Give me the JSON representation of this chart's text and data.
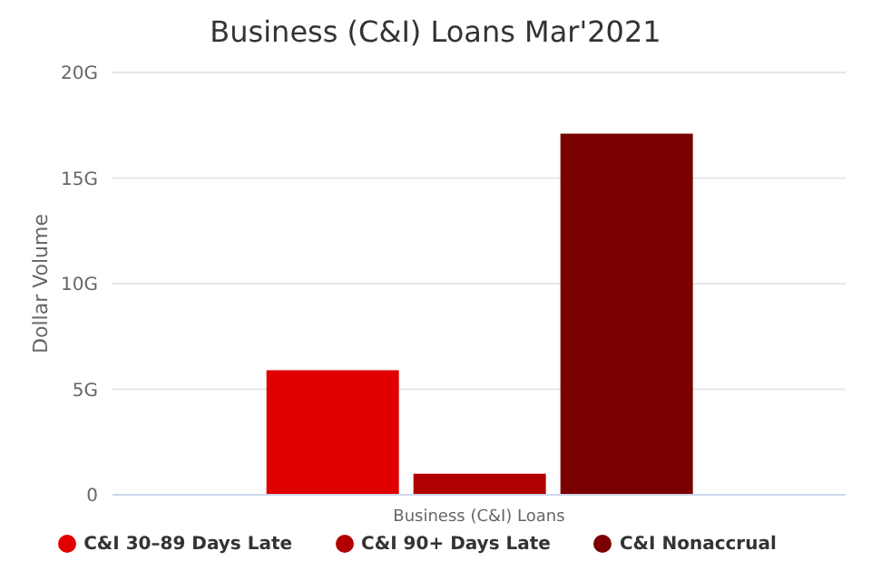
{
  "chart_data": {
    "type": "bar",
    "title": "Business (C&I) Loans Mar'2021",
    "ylabel": "Dollar Volume",
    "categories": [
      "Business (C&I) Loans"
    ],
    "series": [
      {
        "name": "C&I 30–89 Days Late",
        "color": "#e00000",
        "values": [
          5.9
        ]
      },
      {
        "name": "C&I 90+ Days Late",
        "color": "#b00000",
        "values": [
          1.0
        ]
      },
      {
        "name": "C&I Nonaccrual",
        "color": "#7a0000",
        "values": [
          17.1
        ]
      }
    ],
    "ylim": [
      0,
      20
    ],
    "yticks": [
      0,
      {
        "value": 5,
        "label": "5G"
      },
      {
        "value": 10,
        "label": "10G"
      },
      {
        "value": 15,
        "label": "15G"
      },
      {
        "value": 20,
        "label": "20G"
      }
    ],
    "grid": "y",
    "legend": "bottom"
  }
}
